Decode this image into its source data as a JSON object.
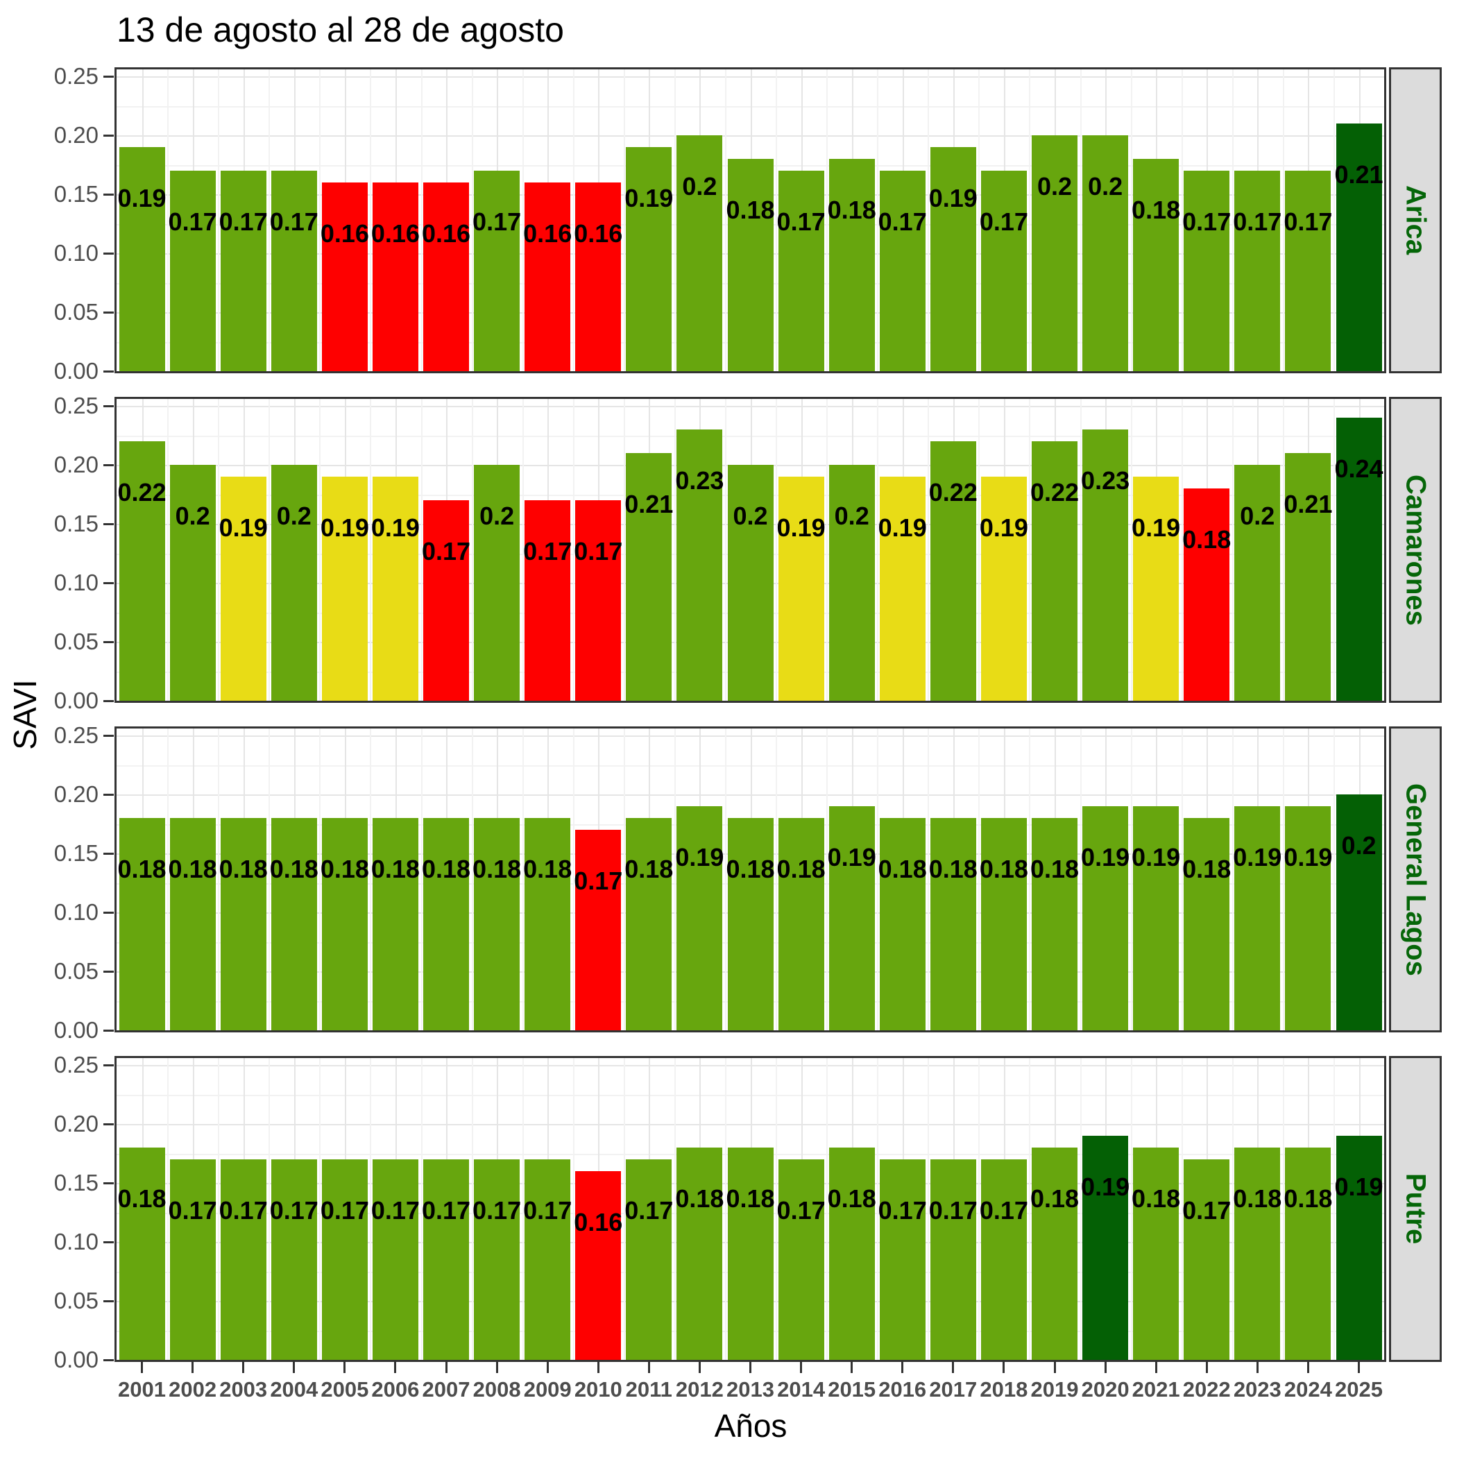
{
  "title": "13 de agosto al 28 de agosto",
  "y_axis": {
    "label": "SAVI",
    "ticks": [
      "0.25",
      "0.20",
      "0.15",
      "0.10",
      "0.05",
      "0.00"
    ]
  },
  "x_axis": {
    "label": "Años"
  },
  "colors": {
    "green": "#67A60E",
    "yellow": "#E8DC16",
    "red": "#FE0000",
    "darkgreen": "#046005",
    "strip_bg": "#DCDCDC",
    "strip_text": "#056608",
    "axis_text": "#4D4D4D",
    "grid_major": "#E5E5E5",
    "grid_minor": "#F2F2F2",
    "panel_border": "#333333"
  },
  "chart_data": {
    "type": "bar",
    "title": "13 de agosto al 28 de agosto",
    "xlabel": "Años",
    "ylabel": "SAVI",
    "ylim": [
      0,
      0.25
    ],
    "y_tick_step_major": 0.05,
    "y_tick_step_minor": 0.025,
    "grid": true,
    "legend_position": "none",
    "categories": [
      "2001",
      "2002",
      "2003",
      "2004",
      "2005",
      "2006",
      "2007",
      "2008",
      "2009",
      "2010",
      "2011",
      "2012",
      "2013",
      "2014",
      "2015",
      "2016",
      "2017",
      "2018",
      "2019",
      "2020",
      "2021",
      "2022",
      "2023",
      "2024",
      "2025"
    ],
    "color_key": {
      "g": "green",
      "y": "yellow",
      "r": "red",
      "d": "darkgreen"
    },
    "facets": [
      {
        "name": "Arica",
        "values": [
          0.19,
          0.17,
          0.17,
          0.17,
          0.16,
          0.16,
          0.16,
          0.17,
          0.16,
          0.16,
          0.19,
          0.2,
          0.18,
          0.17,
          0.18,
          0.17,
          0.19,
          0.17,
          0.2,
          0.2,
          0.18,
          0.17,
          0.17,
          0.17,
          0.21
        ],
        "colors": [
          "g",
          "g",
          "g",
          "g",
          "r",
          "r",
          "r",
          "g",
          "r",
          "r",
          "g",
          "g",
          "g",
          "g",
          "g",
          "g",
          "g",
          "g",
          "g",
          "g",
          "g",
          "g",
          "g",
          "g",
          "d"
        ]
      },
      {
        "name": "Camarones",
        "values": [
          0.22,
          0.2,
          0.19,
          0.2,
          0.19,
          0.19,
          0.17,
          0.2,
          0.17,
          0.17,
          0.21,
          0.23,
          0.2,
          0.19,
          0.2,
          0.19,
          0.22,
          0.19,
          0.22,
          0.23,
          0.19,
          0.18,
          0.2,
          0.21,
          0.24
        ],
        "colors": [
          "g",
          "g",
          "y",
          "g",
          "y",
          "y",
          "r",
          "g",
          "r",
          "r",
          "g",
          "g",
          "g",
          "y",
          "g",
          "y",
          "g",
          "y",
          "g",
          "g",
          "y",
          "r",
          "g",
          "g",
          "d"
        ]
      },
      {
        "name": "General Lagos",
        "values": [
          0.18,
          0.18,
          0.18,
          0.18,
          0.18,
          0.18,
          0.18,
          0.18,
          0.18,
          0.17,
          0.18,
          0.19,
          0.18,
          0.18,
          0.19,
          0.18,
          0.18,
          0.18,
          0.18,
          0.19,
          0.19,
          0.18,
          0.19,
          0.19,
          0.2
        ],
        "colors": [
          "g",
          "g",
          "g",
          "g",
          "g",
          "g",
          "g",
          "g",
          "g",
          "r",
          "g",
          "g",
          "g",
          "g",
          "g",
          "g",
          "g",
          "g",
          "g",
          "g",
          "g",
          "g",
          "g",
          "g",
          "d"
        ]
      },
      {
        "name": "Putre",
        "values": [
          0.18,
          0.17,
          0.17,
          0.17,
          0.17,
          0.17,
          0.17,
          0.17,
          0.17,
          0.16,
          0.17,
          0.18,
          0.18,
          0.17,
          0.18,
          0.17,
          0.17,
          0.17,
          0.18,
          0.19,
          0.18,
          0.17,
          0.18,
          0.18,
          0.19
        ],
        "colors": [
          "g",
          "g",
          "g",
          "g",
          "g",
          "g",
          "g",
          "g",
          "g",
          "r",
          "g",
          "g",
          "g",
          "g",
          "g",
          "g",
          "g",
          "g",
          "g",
          "d",
          "g",
          "g",
          "g",
          "g",
          "d"
        ]
      }
    ]
  }
}
